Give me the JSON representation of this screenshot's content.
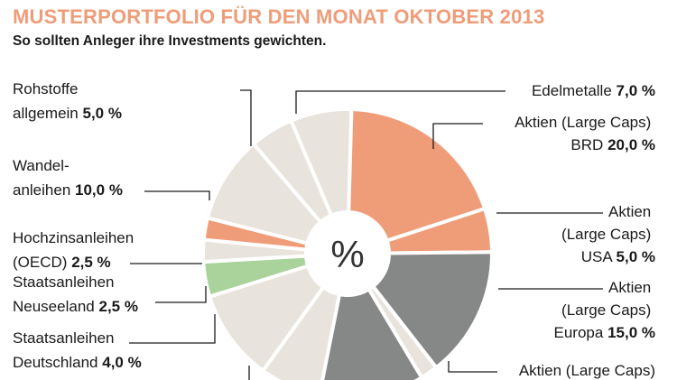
{
  "header": {
    "title": "MUSTERPORTFOLIO FÜR DEN MONAT OKTOBER 2013",
    "subtitle": "So sollten Anleger ihre Investments gewichten."
  },
  "chart_data": {
    "type": "pie",
    "title": "MUSTERPORTFOLIO FÜR DEN MONAT OKTOBER 2013",
    "subtitle": "So sollten Anleger ihre Investments gewichten.",
    "center_label": "%",
    "slices": [
      {
        "label": "Edelmetalle",
        "value": 7.0,
        "display": "7,0 %",
        "color": "#e8e3dc"
      },
      {
        "label": "Aktien (Large Caps) BRD",
        "value": 20.0,
        "display": "20,0 %",
        "color": "#ef9c79"
      },
      {
        "label": "Aktien (Large Caps) USA",
        "value": 5.0,
        "display": "5,0 %",
        "color": "#ef9c79"
      },
      {
        "label": "Aktien (Large Caps) Europa",
        "value": 15.0,
        "display": "15,0 %",
        "color": "#868787"
      },
      {
        "label": "Aktien (Large Caps)",
        "value": 2.0,
        "display": "",
        "color": "#e8e3dc"
      },
      {
        "label": "",
        "value": 12.0,
        "display": "",
        "color": "#868787"
      },
      {
        "label": "",
        "value": 7.0,
        "display": "",
        "color": "#e8e3dc"
      },
      {
        "label": "",
        "value": 10.5,
        "display": "",
        "color": "#e8e3dc"
      },
      {
        "label": "Staatsanleihen Deutschland",
        "value": 4.0,
        "display": "4,0 %",
        "color": "#a9d39a"
      },
      {
        "label": "Staatsanleihen Neuseeland",
        "value": 2.5,
        "display": "2,5 %",
        "color": "#e8e3dc"
      },
      {
        "label": "Hochzinsanleihen (OECD)",
        "value": 2.5,
        "display": "2,5 %",
        "color": "#ef9c79"
      },
      {
        "label": "Wandelanleihen",
        "value": 10.0,
        "display": "10,0 %",
        "color": "#e8e3dc"
      },
      {
        "label": "Rohstoffe allgemein",
        "value": 5.0,
        "display": "5,0 %",
        "color": "#e8e3dc"
      }
    ]
  },
  "labels": {
    "edelmetalle": {
      "name": "Edelmetalle",
      "value": "7,0 %"
    },
    "brd": {
      "line1": "Aktien (Large Caps)",
      "line2": "BRD",
      "value": "20,0 %"
    },
    "usa": {
      "line1": "Aktien",
      "line2": "(Large Caps)",
      "line3": "USA",
      "value": "5,0 %"
    },
    "europa": {
      "line1": "Aktien",
      "line2": "(Large Caps)",
      "line3": "Europa",
      "value": "15,0 %"
    },
    "bottom_right": {
      "line1": "Aktien (Large Caps)"
    },
    "rohstoffe": {
      "line1": "Rohstoffe",
      "line2": "allgemein",
      "value": "5,0 %"
    },
    "wandel": {
      "line1": "Wandel-",
      "line2": "anleihen",
      "value": "10,0 %"
    },
    "hochzins": {
      "line1": "Hochzinsanleihen",
      "line2": "(OECD)",
      "value": "2,5 %"
    },
    "neuseeland": {
      "line1": "Staatsanleihen",
      "line2": "Neuseeland",
      "value": "2,5 %"
    },
    "deutschland": {
      "line1": "Staatsanleihen",
      "line2": "Deutschland",
      "value": "4,0 %"
    }
  }
}
